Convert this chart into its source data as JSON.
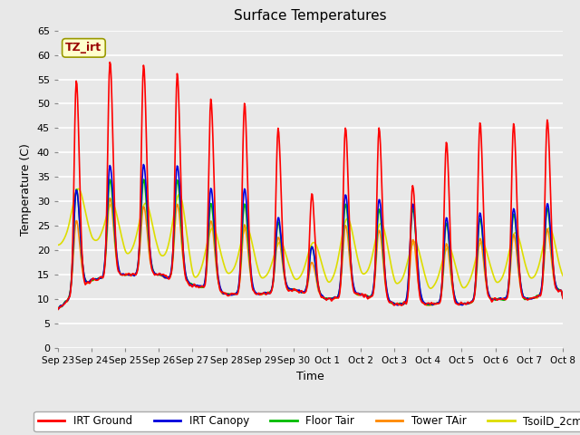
{
  "title": "Surface Temperatures",
  "xlabel": "Time",
  "ylabel": "Temperature (C)",
  "ylim": [
    0,
    65
  ],
  "yticks": [
    0,
    5,
    10,
    15,
    20,
    25,
    30,
    35,
    40,
    45,
    50,
    55,
    60,
    65
  ],
  "annotation_text": "TZ_irt",
  "annotation_bg": "#ffffcc",
  "annotation_border": "#999900",
  "annotation_text_color": "#990000",
  "series_colors": {
    "IRT Ground": "#ff0000",
    "IRT Canopy": "#0000dd",
    "Floor Tair": "#00bb00",
    "Tower TAir": "#ff8800",
    "TsoilD_2cm": "#dddd00"
  },
  "bg_color": "#e8e8e8",
  "plot_bg_color": "#e8e8e8",
  "grid_color": "#ffffff",
  "tick_labels": [
    "Sep 23",
    "Sep 24",
    "Sep 25",
    "Sep 26",
    "Sep 27",
    "Sep 28",
    "Sep 29",
    "Sep 30",
    "Oct 1",
    "Oct 2",
    "Oct 3",
    "Oct 4",
    "Oct 5",
    "Oct 6",
    "Oct 7",
    "Oct 8"
  ],
  "legend_items": [
    "IRT Ground",
    "IRT Canopy",
    "Floor Tair",
    "Tower TAir",
    "TsoilD_2cm"
  ],
  "irt_ground_peaks": [
    56,
    60,
    59,
    57,
    52,
    51,
    46,
    32,
    46,
    46,
    34,
    43,
    47,
    47,
    48
  ],
  "irt_canopy_peaks": [
    33,
    38,
    38,
    38,
    33,
    33,
    27,
    21,
    32,
    31,
    30,
    27,
    28,
    29,
    30
  ],
  "floor_tair_peaks": [
    33,
    35,
    35,
    35,
    30,
    30,
    26,
    21,
    30,
    29,
    29,
    26,
    27,
    28,
    29
  ],
  "tower_tair_peaks": [
    29,
    34,
    32,
    33,
    29,
    28,
    25,
    19,
    28,
    27,
    25,
    24,
    25,
    26,
    27
  ],
  "tsoil_peaks": [
    33,
    30,
    30,
    32,
    25,
    25,
    22,
    22,
    27,
    26,
    22,
    21,
    22,
    24,
    25
  ],
  "night_temps": [
    8,
    14,
    15,
    15,
    13,
    11,
    11,
    12,
    10,
    11,
    9,
    9,
    9,
    10,
    10,
    12
  ],
  "tsoil_night": [
    21,
    22,
    19,
    19,
    14,
    15,
    14,
    14,
    13,
    15,
    13,
    12,
    12,
    13,
    14,
    14
  ]
}
